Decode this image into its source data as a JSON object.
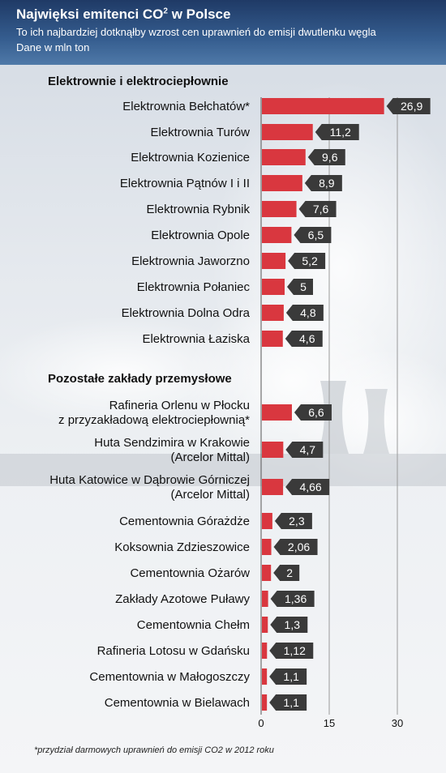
{
  "header": {
    "title_main": "Najwięksi emitenci CO",
    "title_sup": "2",
    "title_tail": " w Polsce",
    "subtitle": "To ich najbardziej dotknąłby wzrost cen uprawnień do emisji dwutlenku węgla",
    "unit": "Dane w mln ton"
  },
  "footnote": "*przydział darmowych uprawnień do emisji CO2 w 2012 roku",
  "colors": {
    "bar": "#d9373f",
    "label_bg": "#3a3a3a",
    "label_text": "#ffffff",
    "header_bg": "#2b4c7e",
    "grid": "#9a9a9a"
  },
  "chart_data": {
    "type": "bar",
    "orientation": "horizontal",
    "unit": "mln ton",
    "xlim": [
      0,
      30
    ],
    "xticks": [
      "0",
      "15",
      "30"
    ],
    "grid": true,
    "sections": [
      {
        "title": "Elektrownie i elektrociepłownie",
        "items": [
          {
            "label": [
              "Elektrownia Bełchatów*"
            ],
            "value": 26.9,
            "display": "26,9"
          },
          {
            "label": [
              "Elektrownia Turów"
            ],
            "value": 11.2,
            "display": "11,2"
          },
          {
            "label": [
              "Elektrownia Kozienice"
            ],
            "value": 9.6,
            "display": "9,6"
          },
          {
            "label": [
              "Elektrownia Pątnów I i II"
            ],
            "value": 8.9,
            "display": "8,9"
          },
          {
            "label": [
              "Elektrownia Rybnik"
            ],
            "value": 7.6,
            "display": "7,6"
          },
          {
            "label": [
              "Elektrownia Opole"
            ],
            "value": 6.5,
            "display": "6,5"
          },
          {
            "label": [
              "Elektrownia Jaworzno"
            ],
            "value": 5.2,
            "display": "5,2"
          },
          {
            "label": [
              "Elektrownia Połaniec"
            ],
            "value": 5,
            "display": "5"
          },
          {
            "label": [
              "Elektrownia Dolna Odra"
            ],
            "value": 4.8,
            "display": "4,8"
          },
          {
            "label": [
              "Elektrownia Łaziska"
            ],
            "value": 4.6,
            "display": "4,6"
          }
        ]
      },
      {
        "title": "Pozostałe zakłady przemysłowe",
        "items": [
          {
            "label": [
              "Rafineria Orlenu w Płocku",
              "z przyzakładową elektrociepłownią*"
            ],
            "value": 6.6,
            "display": "6,6"
          },
          {
            "label": [
              "Huta Sendzimira w Krakowie",
              "(Arcelor Mittal)"
            ],
            "value": 4.7,
            "display": "4,7"
          },
          {
            "label": [
              "Huta Katowice w Dąbrowie Górniczej",
              "(Arcelor Mittal)"
            ],
            "value": 4.66,
            "display": "4,66"
          },
          {
            "label": [
              "Cementownia Górażdże"
            ],
            "value": 2.3,
            "display": "2,3"
          },
          {
            "label": [
              "Koksownia Zdzieszowice"
            ],
            "value": 2.06,
            "display": "2,06"
          },
          {
            "label": [
              "Cementownia Ożarów"
            ],
            "value": 2,
            "display": "2"
          },
          {
            "label": [
              "Zakłady Azotowe Puławy"
            ],
            "value": 1.36,
            "display": "1,36"
          },
          {
            "label": [
              "Cementownia Chełm"
            ],
            "value": 1.3,
            "display": "1,3"
          },
          {
            "label": [
              "Rafineria Lotosu w Gdańsku"
            ],
            "value": 1.12,
            "display": "1,12"
          },
          {
            "label": [
              "Cementownia w Małogoszczy"
            ],
            "value": 1.1,
            "display": "1,1"
          },
          {
            "label": [
              "Cementownia w Bielawach"
            ],
            "value": 1.1,
            "display": "1,1"
          }
        ]
      }
    ]
  }
}
